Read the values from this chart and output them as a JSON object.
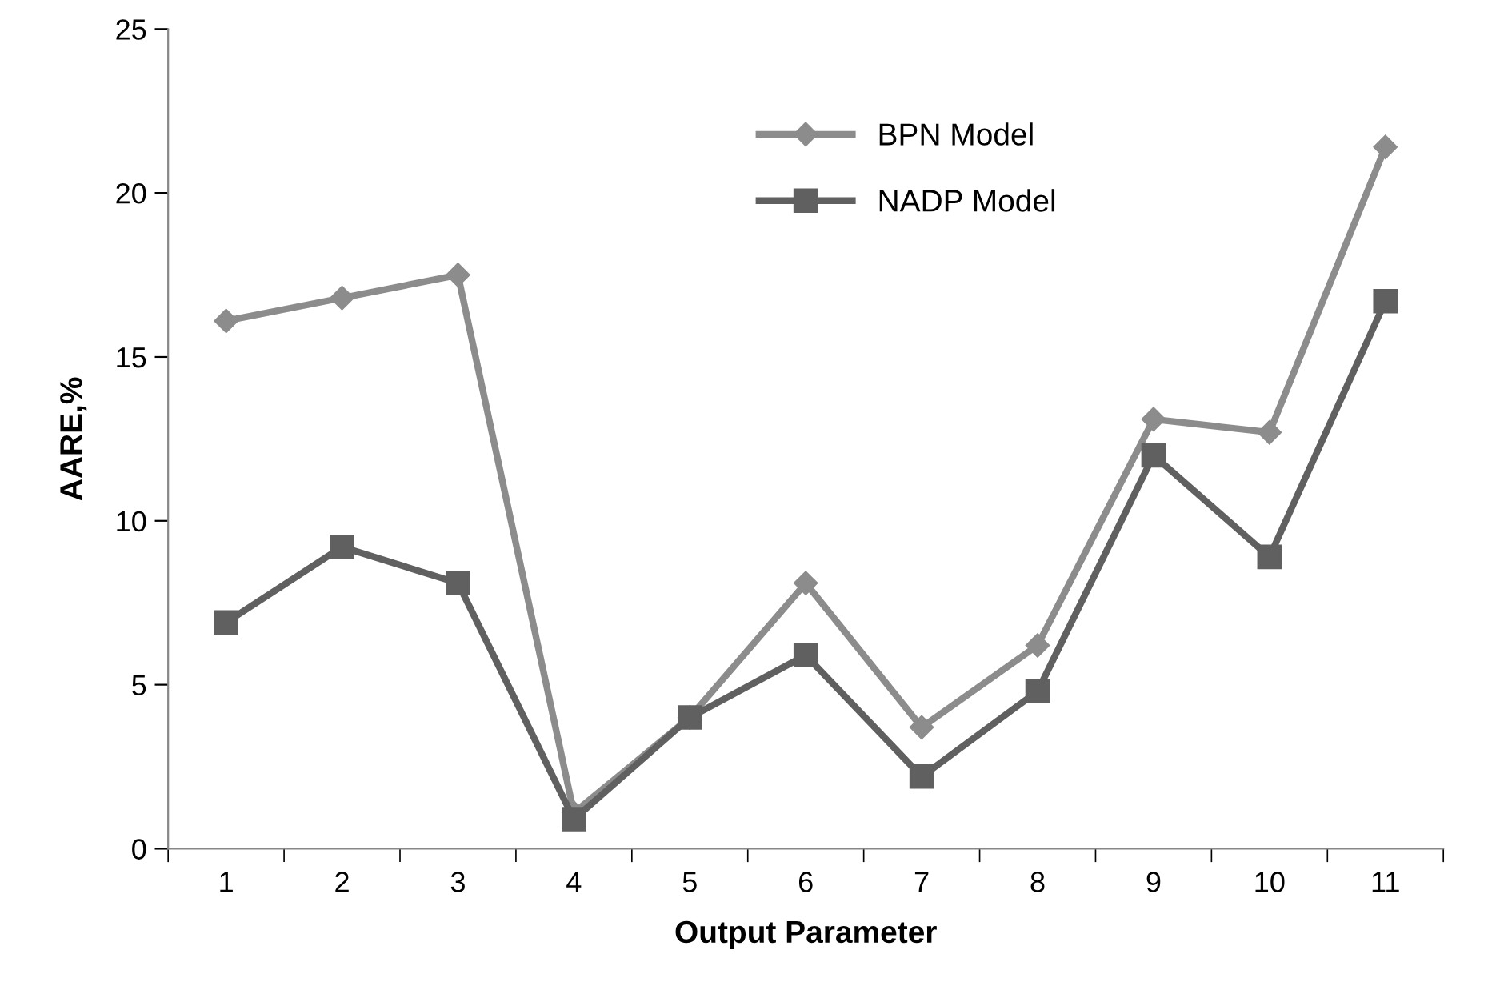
{
  "chart_data": {
    "type": "line",
    "xlabel": "Output Parameter",
    "ylabel": "AARE,%",
    "categories": [
      "1",
      "2",
      "3",
      "4",
      "5",
      "6",
      "7",
      "8",
      "9",
      "10",
      "11"
    ],
    "series": [
      {
        "name": "BPN Model",
        "color": "#8c8c8c",
        "marker": "diamond",
        "values": [
          16.1,
          16.8,
          17.5,
          1.1,
          4.0,
          8.1,
          3.7,
          6.2,
          13.1,
          12.7,
          21.4
        ]
      },
      {
        "name": "NADP Model",
        "color": "#606060",
        "marker": "square",
        "values": [
          6.9,
          9.2,
          8.1,
          0.9,
          4.0,
          5.9,
          2.2,
          4.8,
          12.0,
          8.9,
          16.7
        ]
      }
    ],
    "ylim": [
      0,
      25
    ],
    "yticks": [
      0,
      5,
      10,
      15,
      20,
      25
    ],
    "grid": false,
    "legend": "top",
    "line_style": "solid"
  }
}
